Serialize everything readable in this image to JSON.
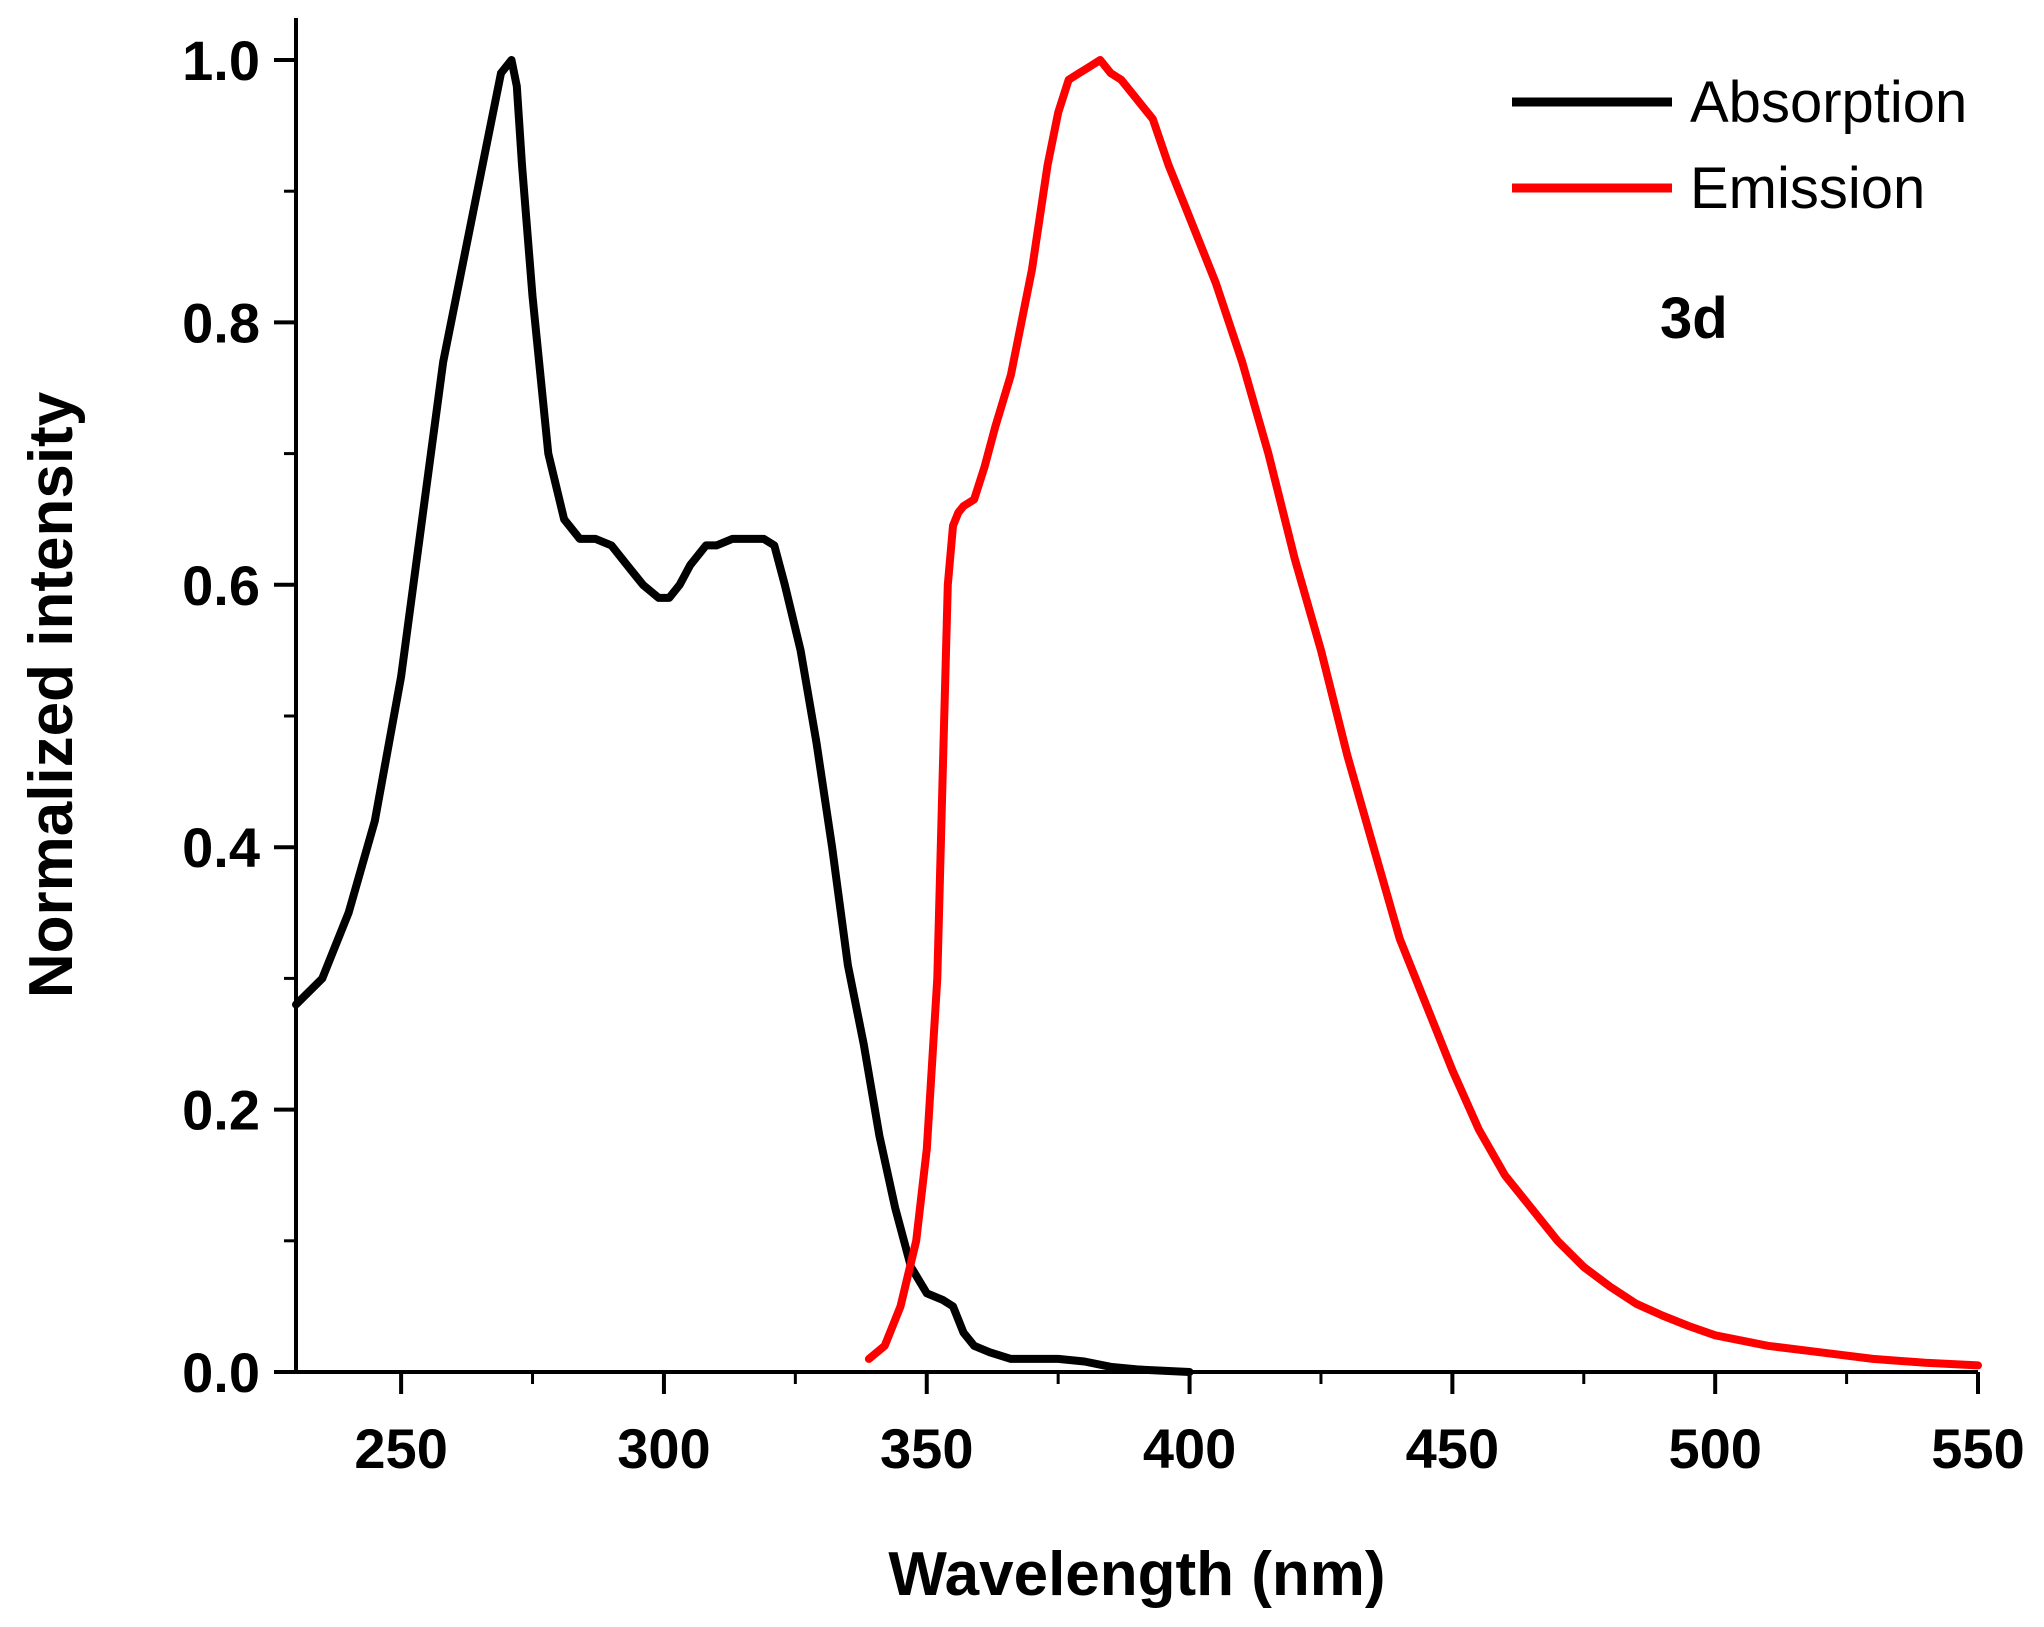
{
  "chart_data": {
    "type": "line",
    "title": "",
    "xlabel": "Wavelength (nm)",
    "ylabel": "Normalized intensity",
    "xlim": [
      230,
      550
    ],
    "ylim": [
      0,
      1.0
    ],
    "x_ticks": [
      250,
      300,
      350,
      400,
      450,
      500,
      550
    ],
    "x_tick_labels": [
      "250",
      "300",
      "350",
      "400",
      "450",
      "500",
      "550"
    ],
    "y_ticks": [
      0.0,
      0.2,
      0.4,
      0.6,
      0.8,
      1.0
    ],
    "y_tick_labels": [
      "0.0",
      "0.2",
      "0.4",
      "0.6",
      "0.8",
      "1.0"
    ],
    "grid": false,
    "legend_position": "top-right",
    "annotation": "3d",
    "series": [
      {
        "name": "Absorption",
        "color": "#000000",
        "x": [
          230,
          235,
          240,
          245,
          250,
          255,
          258,
          262,
          266,
          269,
          271,
          272,
          273,
          275,
          278,
          281,
          284,
          287,
          290,
          293,
          296,
          299,
          301,
          303,
          305,
          308,
          310,
          313,
          316,
          319,
          321,
          323,
          326,
          329,
          332,
          335,
          338,
          341,
          344,
          347,
          350,
          353,
          355,
          357,
          359,
          362,
          366,
          370,
          375,
          380,
          385,
          390,
          395,
          400
        ],
        "y": [
          0.28,
          0.3,
          0.35,
          0.42,
          0.53,
          0.68,
          0.77,
          0.85,
          0.93,
          0.99,
          1.0,
          0.98,
          0.92,
          0.82,
          0.7,
          0.65,
          0.635,
          0.635,
          0.63,
          0.615,
          0.6,
          0.59,
          0.59,
          0.6,
          0.615,
          0.63,
          0.63,
          0.635,
          0.635,
          0.635,
          0.63,
          0.6,
          0.55,
          0.48,
          0.4,
          0.31,
          0.25,
          0.18,
          0.125,
          0.08,
          0.06,
          0.055,
          0.05,
          0.03,
          0.02,
          0.015,
          0.01,
          0.01,
          0.01,
          0.008,
          0.004,
          0.002,
          0.001,
          0.0
        ]
      },
      {
        "name": "Emission",
        "color": "#ff0000",
        "x": [
          339,
          342,
          345,
          348,
          350,
          352,
          353,
          354,
          355,
          356,
          357,
          359,
          361,
          363,
          366,
          370,
          373,
          375,
          377,
          379,
          381,
          383,
          385,
          387,
          390,
          393,
          396,
          399,
          402,
          405,
          410,
          415,
          420,
          425,
          430,
          435,
          440,
          445,
          450,
          455,
          460,
          465,
          470,
          475,
          480,
          485,
          490,
          495,
          500,
          510,
          520,
          530,
          540,
          550
        ],
        "y": [
          0.01,
          0.02,
          0.05,
          0.1,
          0.17,
          0.3,
          0.45,
          0.6,
          0.645,
          0.655,
          0.66,
          0.665,
          0.69,
          0.72,
          0.76,
          0.84,
          0.92,
          0.96,
          0.985,
          0.99,
          0.995,
          1.0,
          0.99,
          0.985,
          0.97,
          0.955,
          0.92,
          0.89,
          0.86,
          0.83,
          0.77,
          0.7,
          0.62,
          0.55,
          0.47,
          0.4,
          0.33,
          0.28,
          0.23,
          0.185,
          0.15,
          0.125,
          0.1,
          0.08,
          0.065,
          0.052,
          0.043,
          0.035,
          0.028,
          0.02,
          0.015,
          0.01,
          0.007,
          0.005
        ]
      }
    ]
  }
}
